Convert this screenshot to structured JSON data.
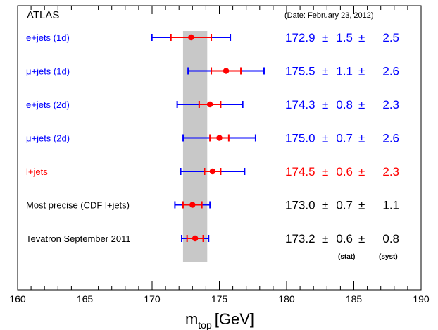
{
  "chart_data": {
    "type": "scatter",
    "subtype": "horizontal error-bar summary",
    "experiment_label": "ATLAS",
    "date_note": "(Date: February 23, 2012)",
    "xlabel_main": "m",
    "xlabel_sub": "top",
    "xlabel_unit": "[GeV]",
    "xlim": [
      160,
      190
    ],
    "x_ticks": [
      160,
      165,
      170,
      175,
      180,
      185,
      190
    ],
    "x_tick_labels": [
      "160",
      "165",
      "170",
      "175",
      "180",
      "185",
      "190"
    ],
    "reference_band": {
      "center": 173.2,
      "low": 172.3,
      "high": 174.1,
      "color": "#c8c8c8"
    },
    "column_headers": {
      "stat": "(stat)",
      "syst": "(syst)"
    },
    "pm": "±",
    "colors": {
      "blue": "#0000ff",
      "red": "#ff0000",
      "black": "#000000",
      "marker": "#ff0000"
    },
    "measurements": [
      {
        "label": "e+jets (1d)",
        "value": 172.9,
        "value_text": "172.9",
        "stat": 1.5,
        "stat_text": "1.5",
        "syst": 2.5,
        "syst_text": "2.5",
        "label_color": "blue",
        "value_color": "blue",
        "total_color": "blue"
      },
      {
        "label": "μ+jets (1d)",
        "value": 175.5,
        "value_text": "175.5",
        "stat": 1.1,
        "stat_text": "1.1",
        "syst": 2.6,
        "syst_text": "2.6",
        "label_color": "blue",
        "value_color": "blue",
        "total_color": "blue"
      },
      {
        "label": "e+jets (2d)",
        "value": 174.3,
        "value_text": "174.3",
        "stat": 0.8,
        "stat_text": "0.8",
        "syst": 2.3,
        "syst_text": "2.3",
        "label_color": "blue",
        "value_color": "blue",
        "total_color": "blue"
      },
      {
        "label": "μ+jets (2d)",
        "value": 175.0,
        "value_text": "175.0",
        "stat": 0.7,
        "stat_text": "0.7",
        "syst": 2.6,
        "syst_text": "2.6",
        "label_color": "blue",
        "value_color": "blue",
        "total_color": "blue"
      },
      {
        "label": "l+jets",
        "value": 174.5,
        "value_text": "174.5",
        "stat": 0.6,
        "stat_text": "0.6",
        "syst": 2.3,
        "syst_text": "2.3",
        "label_color": "red",
        "value_color": "red",
        "total_color": "blue"
      },
      {
        "label": "Most precise (CDF l+jets)",
        "value": 173.0,
        "value_text": "173.0",
        "stat": 0.7,
        "stat_text": "0.7",
        "syst": 1.1,
        "syst_text": "1.1",
        "label_color": "black",
        "value_color": "black",
        "total_color": "blue"
      },
      {
        "label": "Tevatron September 2011",
        "value": 173.2,
        "value_text": "173.2",
        "stat": 0.6,
        "stat_text": "0.6",
        "syst": 0.8,
        "syst_text": "0.8",
        "label_color": "black",
        "value_color": "black",
        "total_color": "blue"
      }
    ]
  }
}
